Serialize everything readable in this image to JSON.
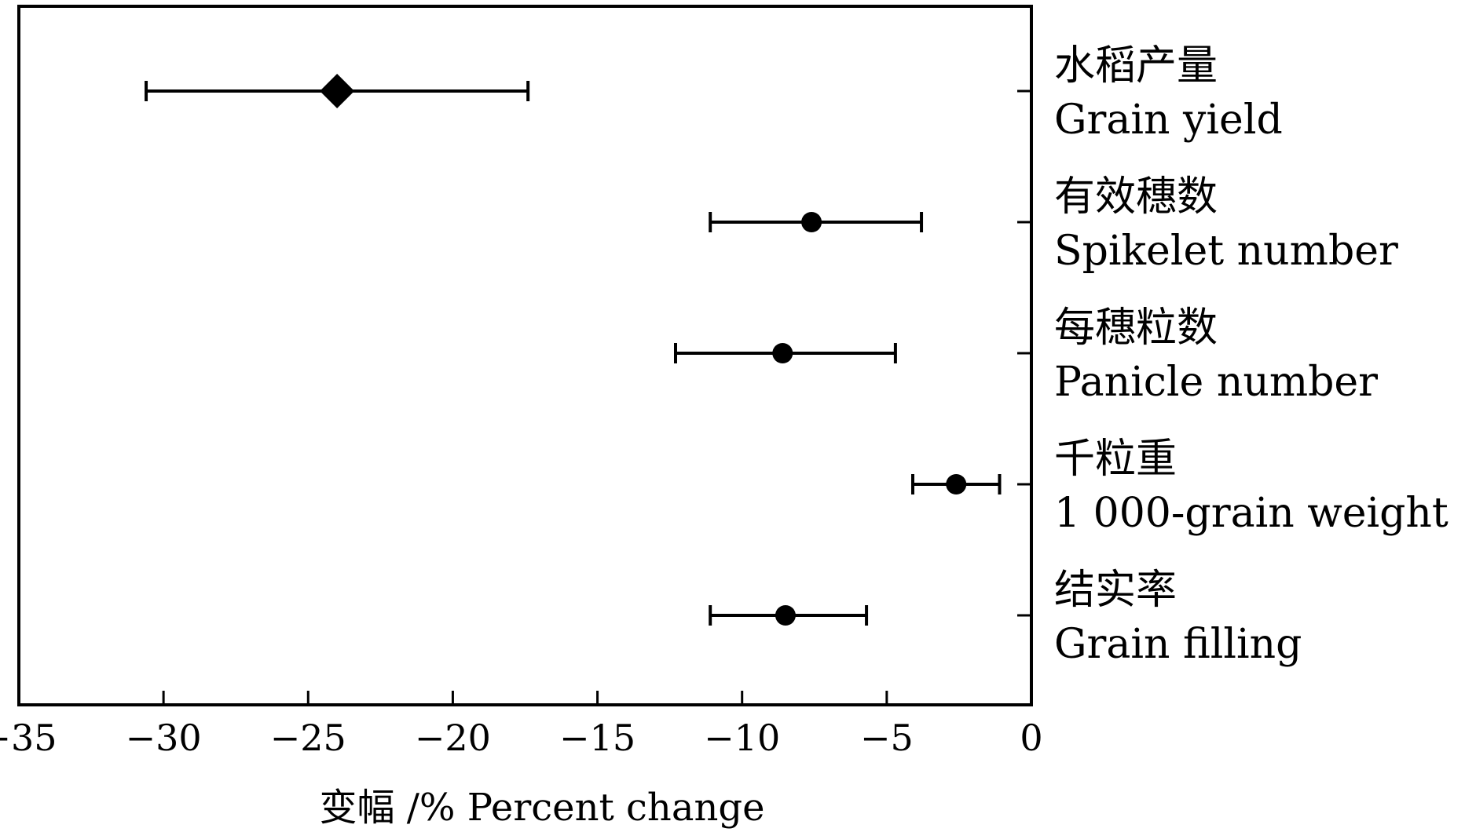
{
  "chart_data": {
    "type": "scatter",
    "orientation": "horizontal-forest",
    "title": "",
    "xlabel": "变幅 /%  Percent change",
    "ylabel": "",
    "xlim": [
      -35,
      0
    ],
    "xticks": [
      -35,
      -30,
      -25,
      -20,
      -15,
      -10,
      -5,
      0
    ],
    "xtick_labels": [
      "−35",
      "−30",
      "−25",
      "−20",
      "−15",
      "−10",
      "−5",
      "0"
    ],
    "grid": false,
    "legend": "none",
    "y_axis_side": "right",
    "categories": [
      {
        "label_cn": "水稻产量",
        "label_en": "Grain yield",
        "mean": -24,
        "lower": -30.6,
        "upper": -17.4,
        "marker": "diamond"
      },
      {
        "label_cn": "有效穗数",
        "label_en": "Spikelet number",
        "mean": -7.6,
        "lower": -11.1,
        "upper": -3.8,
        "marker": "circle"
      },
      {
        "label_cn": "每穗粒数",
        "label_en": "Panicle number",
        "mean": -8.6,
        "lower": -12.3,
        "upper": -4.7,
        "marker": "circle"
      },
      {
        "label_cn": "千粒重",
        "label_en": "1 000-grain weight",
        "mean": -2.6,
        "lower": -4.1,
        "upper": -1.1,
        "marker": "circle"
      },
      {
        "label_cn": "结实率",
        "label_en": "Grain filling",
        "mean": -8.5,
        "lower": -11.1,
        "upper": -5.7,
        "marker": "circle"
      }
    ]
  },
  "colors": {
    "ink": "#000000",
    "background": "#ffffff"
  }
}
